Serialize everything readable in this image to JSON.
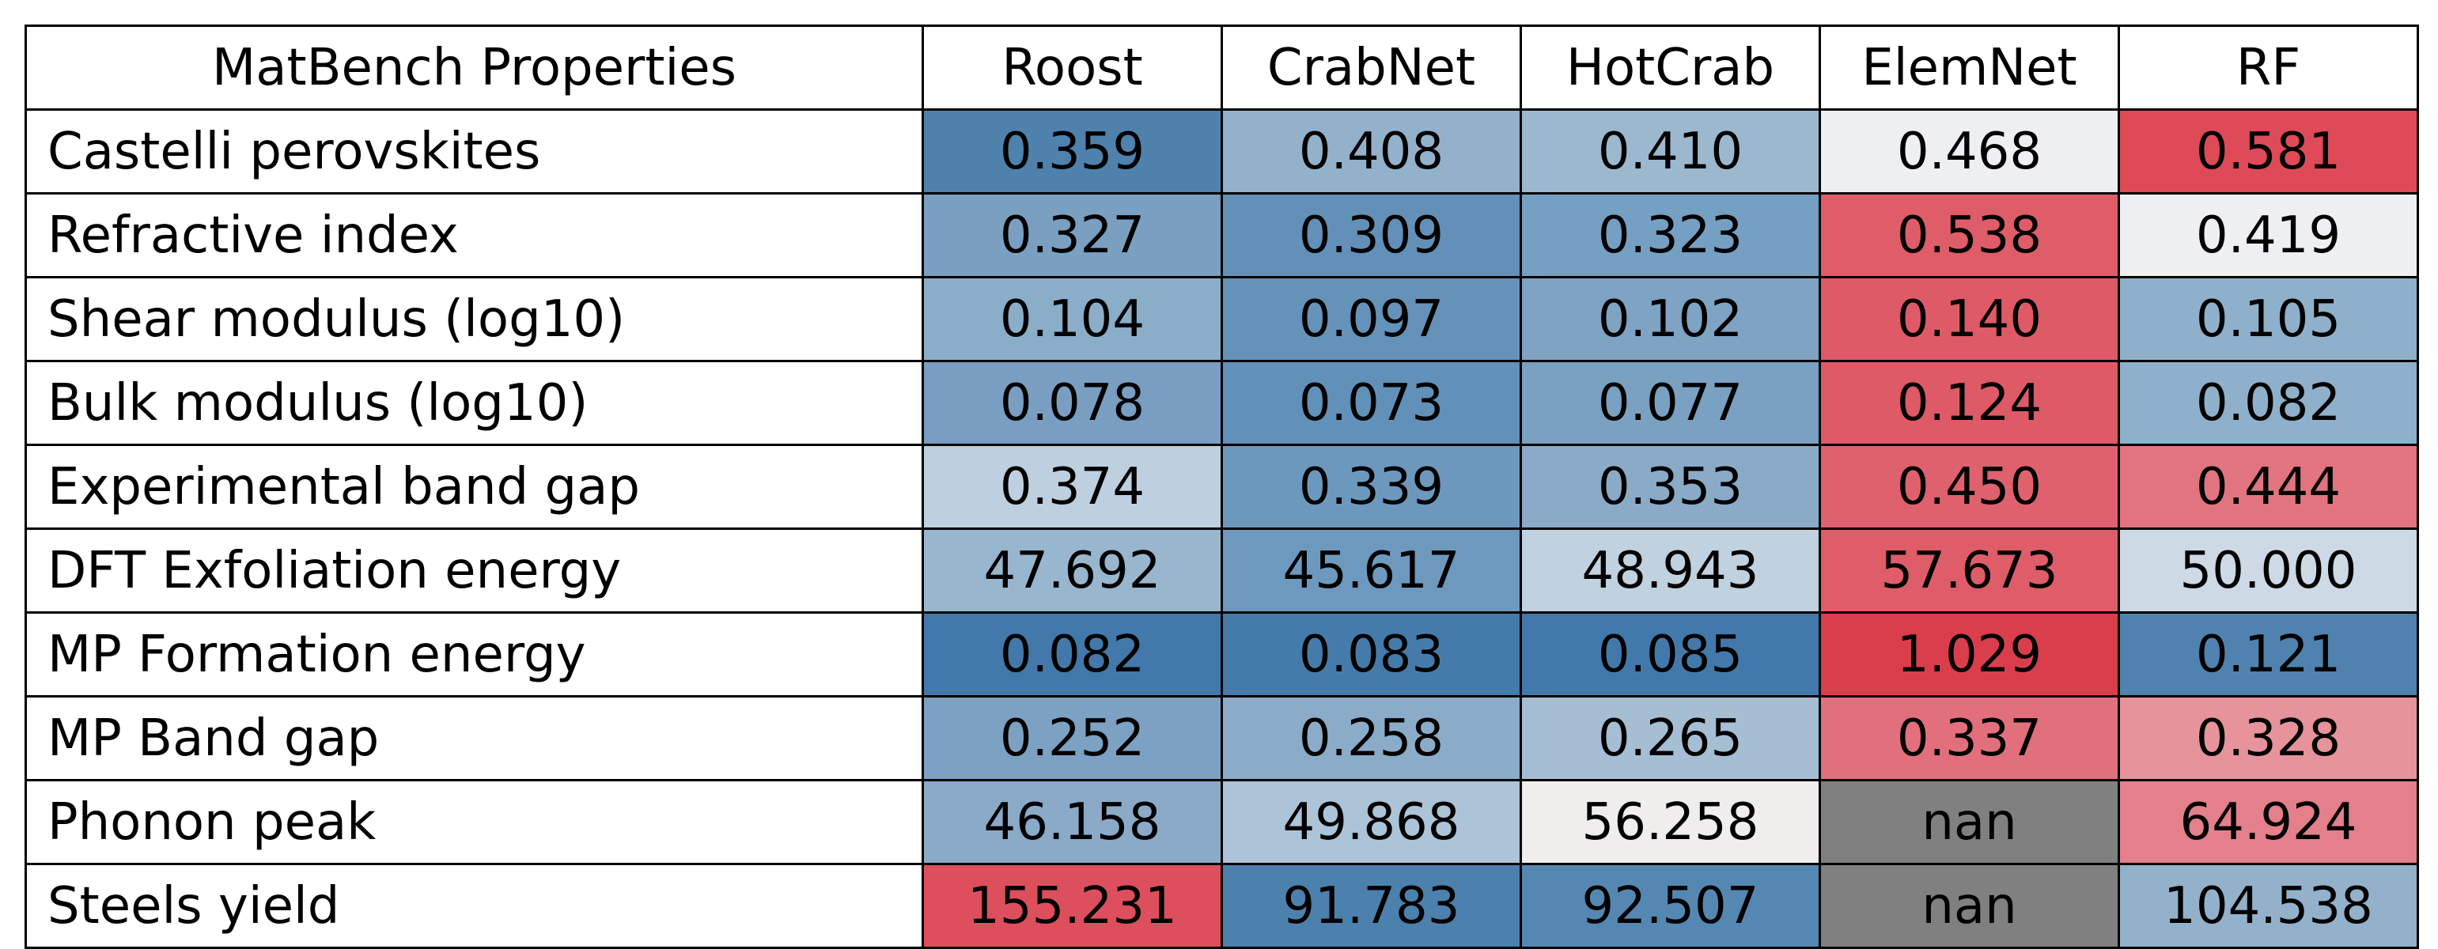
{
  "chart_data": {
    "type": "heatmap",
    "corner_label": "MatBench Properties",
    "columns": [
      "Roost",
      "CrabNet",
      "HotCrab",
      "ElemNet",
      "RF"
    ],
    "rows": [
      {
        "label": "Castelli perovskites",
        "values": [
          "0.359",
          "0.408",
          "0.410",
          "0.468",
          "0.581"
        ],
        "colors": [
          "#4e82ad",
          "#93b1cb",
          "#9cb8cf",
          "#eeeff2",
          "#de4a58"
        ]
      },
      {
        "label": "Refractive index",
        "values": [
          "0.327",
          "0.309",
          "0.323",
          "0.538",
          "0.419"
        ],
        "colors": [
          "#7a9fc0",
          "#6290b8",
          "#75a0c3",
          "#df5c69",
          "#eeeff2"
        ]
      },
      {
        "label": "Shear modulus (log10)",
        "values": [
          "0.104",
          "0.097",
          "0.102",
          "0.140",
          "0.105"
        ],
        "colors": [
          "#8aadc8",
          "#6592b9",
          "#7ea3c3",
          "#df5a67",
          "#8fb0ca"
        ]
      },
      {
        "label": "Bulk modulus (log10)",
        "values": [
          "0.078",
          "0.073",
          "0.077",
          "0.124",
          "0.082"
        ],
        "colors": [
          "#799ec1",
          "#6191b9",
          "#7aa0c2",
          "#de5a67",
          "#8fb0ca"
        ]
      },
      {
        "label": "Experimental band gap",
        "values": [
          "0.374",
          "0.339",
          "0.353",
          "0.450",
          "0.444"
        ],
        "colors": [
          "#bed0df",
          "#6d98be",
          "#8aaac8",
          "#df616e",
          "#e27480"
        ]
      },
      {
        "label": "DFT Exfoliation energy",
        "values": [
          "47.692",
          "45.617",
          "48.943",
          "57.673",
          "50.000"
        ],
        "colors": [
          "#99b6cf",
          "#6e99bf",
          "#c0d1e0",
          "#df5c69",
          "#cdd9e5"
        ]
      },
      {
        "label": "MP Formation energy",
        "values": [
          "0.082",
          "0.083",
          "0.085",
          "1.029",
          "0.121"
        ],
        "colors": [
          "#4279aa",
          "#457bab",
          "#4279aa",
          "#da3e4d",
          "#4f82ae"
        ]
      },
      {
        "label": "MP Band gap",
        "values": [
          "0.252",
          "0.258",
          "0.265",
          "0.337",
          "0.328"
        ],
        "colors": [
          "#7ca1c2",
          "#8bacc8",
          "#a6bed4",
          "#e2707c",
          "#e6939b"
        ]
      },
      {
        "label": "Phonon peak",
        "values": [
          "46.158",
          "49.868",
          "56.258",
          "nan",
          "64.924"
        ],
        "colors": [
          "#8aaac8",
          "#adc3d7",
          "#f0eded",
          "#808080",
          "#e3808b"
        ]
      },
      {
        "label": "Steels yield",
        "values": [
          "155.231",
          "91.783",
          "92.507",
          "nan",
          "104.538"
        ],
        "colors": [
          "#dd4f5d",
          "#4c80ad",
          "#5488b2",
          "#808080",
          "#93b1cb"
        ]
      }
    ],
    "colormap": "blue (lower) to red (higher), per row",
    "missing_color": "#808080"
  }
}
